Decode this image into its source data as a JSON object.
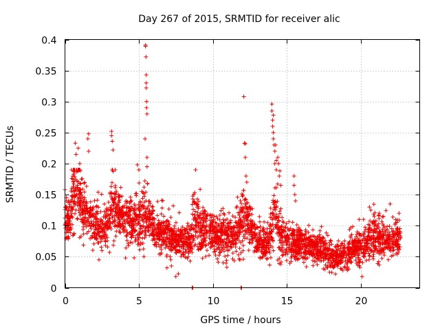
{
  "chart_data": {
    "type": "scatter",
    "title": "Day 267 of 2015, SRMTID for receiver alic",
    "xlabel": "GPS time / hours",
    "ylabel": "SRMTID / TECUs",
    "xlim": [
      0,
      24
    ],
    "ylim": [
      0,
      0.4
    ],
    "xticks": [
      0,
      5,
      10,
      15,
      20
    ],
    "xtick_labels": [
      "0",
      "5",
      "10",
      "15",
      "20"
    ],
    "yticks": [
      0,
      0.05,
      0.1,
      0.15,
      0.2,
      0.25,
      0.3,
      0.35,
      0.4
    ],
    "ytick_labels": [
      "0",
      "0.05",
      "0.1",
      "0.15",
      "0.2",
      "0.25",
      "0.3",
      "0.35",
      "0.4"
    ],
    "grid": true,
    "marker": "+",
    "color": "#ee0000",
    "trend": {
      "x": [
        0,
        0.3,
        0.6,
        0.9,
        1.2,
        1.6,
        2.0,
        2.5,
        3.0,
        3.2,
        3.5,
        4.0,
        4.5,
        5.0,
        5.4,
        5.8,
        6.5,
        7.5,
        8.5,
        8.7,
        9.0,
        9.5,
        10.5,
        11.5,
        12.2,
        13.0,
        13.8,
        14.2,
        14.6,
        15.5,
        16.5,
        17.5,
        18.2,
        19.0,
        20.0,
        20.5,
        21.0,
        22.0,
        22.7
      ],
      "y": [
        0.1,
        0.11,
        0.15,
        0.16,
        0.12,
        0.11,
        0.1,
        0.095,
        0.1,
        0.13,
        0.125,
        0.115,
        0.105,
        0.1,
        0.12,
        0.1,
        0.085,
        0.075,
        0.07,
        0.11,
        0.1,
        0.09,
        0.08,
        0.085,
        0.11,
        0.075,
        0.065,
        0.13,
        0.08,
        0.07,
        0.065,
        0.06,
        0.045,
        0.055,
        0.065,
        0.075,
        0.08,
        0.075,
        0.08
      ],
      "spread": [
        0.03,
        0.04,
        0.05,
        0.05,
        0.04,
        0.035,
        0.03,
        0.03,
        0.03,
        0.045,
        0.04,
        0.035,
        0.035,
        0.035,
        0.045,
        0.03,
        0.03,
        0.025,
        0.025,
        0.04,
        0.035,
        0.03,
        0.03,
        0.035,
        0.04,
        0.025,
        0.025,
        0.05,
        0.03,
        0.025,
        0.025,
        0.02,
        0.02,
        0.02,
        0.025,
        0.025,
        0.03,
        0.025,
        0.025
      ]
    },
    "count": 3200,
    "seed": 267,
    "points": [
      [
        0.0,
        0.158
      ],
      [
        0.05,
        0.13
      ],
      [
        0.1,
        0.145
      ],
      [
        0.7,
        0.233
      ],
      [
        0.75,
        0.215
      ],
      [
        0.9,
        0.225
      ],
      [
        1.0,
        0.2
      ],
      [
        1.55,
        0.24
      ],
      [
        1.6,
        0.248
      ],
      [
        1.6,
        0.22
      ],
      [
        3.15,
        0.252
      ],
      [
        3.15,
        0.245
      ],
      [
        3.2,
        0.236
      ],
      [
        3.25,
        0.222
      ],
      [
        4.9,
        0.198
      ],
      [
        5.0,
        0.19
      ],
      [
        5.45,
        0.391
      ],
      [
        5.45,
        0.389
      ],
      [
        5.48,
        0.372
      ],
      [
        5.5,
        0.343
      ],
      [
        5.5,
        0.33
      ],
      [
        5.5,
        0.322
      ],
      [
        5.52,
        0.3
      ],
      [
        5.52,
        0.29
      ],
      [
        5.55,
        0.28
      ],
      [
        5.42,
        0.24
      ],
      [
        5.55,
        0.21
      ],
      [
        5.55,
        0.195
      ],
      [
        5.58,
        0.168
      ],
      [
        7.5,
        0.018
      ],
      [
        8.6,
        0.0
      ],
      [
        8.65,
        0.0
      ],
      [
        11.9,
        0.0
      ],
      [
        11.95,
        0.0
      ],
      [
        12.1,
        0.308
      ],
      [
        12.15,
        0.233
      ],
      [
        12.2,
        0.232
      ],
      [
        12.2,
        0.21
      ],
      [
        12.25,
        0.18
      ],
      [
        12.3,
        0.17
      ],
      [
        14.0,
        0.296
      ],
      [
        14.0,
        0.285
      ],
      [
        14.05,
        0.27
      ],
      [
        14.05,
        0.26
      ],
      [
        14.1,
        0.278
      ],
      [
        14.1,
        0.25
      ],
      [
        14.1,
        0.24
      ],
      [
        14.15,
        0.23
      ],
      [
        14.2,
        0.22
      ],
      [
        14.2,
        0.2
      ],
      [
        14.25,
        0.23
      ],
      [
        14.3,
        0.205
      ],
      [
        14.3,
        0.19
      ],
      [
        14.4,
        0.21
      ],
      [
        14.45,
        0.2
      ],
      [
        14.5,
        0.18
      ],
      [
        14.6,
        0.165
      ],
      [
        15.5,
        0.18
      ],
      [
        15.5,
        0.165
      ],
      [
        15.55,
        0.15
      ],
      [
        15.6,
        0.14
      ],
      [
        19.9,
        0.11
      ],
      [
        20.2,
        0.11
      ],
      [
        20.6,
        0.13
      ],
      [
        20.7,
        0.125
      ],
      [
        22.0,
        0.135
      ],
      [
        22.6,
        0.12
      ],
      [
        17.9,
        0.025
      ],
      [
        18.3,
        0.022
      ],
      [
        18.8,
        0.028
      ],
      [
        19.2,
        0.03
      ],
      [
        20.1,
        0.018
      ],
      [
        6.9,
        0.032
      ],
      [
        7.2,
        0.035
      ],
      [
        2.3,
        0.045
      ],
      [
        4.1,
        0.048
      ]
    ]
  }
}
